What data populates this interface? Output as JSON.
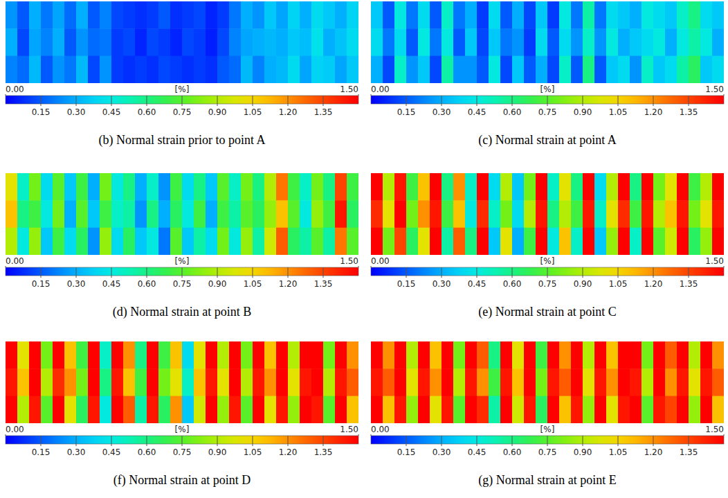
{
  "chart_data": [
    {
      "type": "heatmap",
      "title": "(b) Normal strain prior to point A",
      "cells": [
        [
          0.25,
          0.15,
          0.3,
          0.2,
          0.28,
          0.18,
          0.3,
          0.15,
          0.22,
          0.12,
          0.1,
          0.08,
          0.1,
          0.15,
          0.08,
          0.1,
          0.12,
          0.06,
          0.1,
          0.2,
          0.3,
          0.25,
          0.35,
          0.28,
          0.38,
          0.3,
          0.4,
          0.35,
          0.3,
          0.38
        ],
        [
          0.3,
          0.12,
          0.28,
          0.22,
          0.3,
          0.15,
          0.25,
          0.18,
          0.2,
          0.1,
          0.12,
          0.06,
          0.12,
          0.1,
          0.06,
          0.12,
          0.1,
          0.05,
          0.12,
          0.22,
          0.28,
          0.3,
          0.32,
          0.3,
          0.35,
          0.33,
          0.42,
          0.3,
          0.34,
          0.4
        ],
        [
          0.22,
          0.18,
          0.32,
          0.15,
          0.25,
          0.2,
          0.32,
          0.12,
          0.25,
          0.1,
          0.08,
          0.1,
          0.08,
          0.12,
          0.1,
          0.08,
          0.1,
          0.08,
          0.15,
          0.18,
          0.32,
          0.22,
          0.3,
          0.32,
          0.4,
          0.28,
          0.38,
          0.36,
          0.28,
          0.35
        ]
      ],
      "colorbar_range": [
        0,
        1.5
      ],
      "colorbar_label": "[%]",
      "colorbar_ticks": [
        {
          "value": 0,
          "label": "0.00"
        },
        0.15,
        {
          "value": 0.3,
          "label": "0.30"
        },
        0.45,
        {
          "value": 0.6,
          "label": "0.60"
        },
        0.75,
        {
          "value": 0.9,
          "label": "0.90"
        },
        1.05,
        {
          "value": 1.2,
          "label": "1.20"
        },
        1.35,
        {
          "value": 1.5,
          "label": "1.50"
        }
      ]
    },
    {
      "type": "heatmap",
      "title": "(c) Normal strain at point A",
      "cells": [
        [
          0.35,
          0.15,
          0.45,
          0.2,
          0.4,
          0.15,
          0.5,
          0.2,
          0.3,
          0.1,
          0.4,
          0.15,
          0.3,
          0.12,
          0.35,
          0.1,
          0.45,
          0.2,
          0.55,
          0.2,
          0.4,
          0.35,
          0.3,
          0.45,
          0.4,
          0.35,
          0.5,
          0.6,
          0.4,
          0.35
        ],
        [
          0.4,
          0.2,
          0.4,
          0.15,
          0.45,
          0.2,
          0.45,
          0.15,
          0.35,
          0.12,
          0.35,
          0.2,
          0.25,
          0.1,
          0.4,
          0.15,
          0.4,
          0.25,
          0.5,
          0.25,
          0.45,
          0.3,
          0.35,
          0.4,
          0.45,
          0.3,
          0.45,
          0.55,
          0.45,
          0.3
        ],
        [
          0.3,
          0.12,
          0.5,
          0.25,
          0.35,
          0.12,
          0.55,
          0.25,
          0.25,
          0.15,
          0.45,
          0.12,
          0.35,
          0.15,
          0.3,
          0.12,
          0.5,
          0.15,
          0.6,
          0.15,
          0.35,
          0.4,
          0.25,
          0.5,
          0.35,
          0.4,
          0.55,
          0.65,
          0.35,
          0.4
        ]
      ],
      "colorbar_range": [
        0,
        1.5
      ],
      "colorbar_label": "[%]",
      "colorbar_ticks": [
        {
          "value": 0,
          "label": "0.00"
        },
        0.15,
        {
          "value": 0.3,
          "label": "0.30"
        },
        0.45,
        {
          "value": 0.6,
          "label": "0.60"
        },
        0.75,
        {
          "value": 0.9,
          "label": "0.90"
        },
        1.05,
        {
          "value": 1.2,
          "label": "1.20"
        },
        1.35,
        {
          "value": 1.5,
          "label": "1.50"
        }
      ]
    },
    {
      "type": "heatmap",
      "title": "(d) Normal strain at point B",
      "cells": [
        [
          1.0,
          0.5,
          0.8,
          0.4,
          0.75,
          0.35,
          0.7,
          0.3,
          0.8,
          0.45,
          0.6,
          0.3,
          0.5,
          0.25,
          0.7,
          0.4,
          0.6,
          0.35,
          0.75,
          0.5,
          0.8,
          0.6,
          0.9,
          1.25,
          0.7,
          0.5,
          0.8,
          0.6,
          1.35,
          0.7
        ],
        [
          1.1,
          0.6,
          0.7,
          0.45,
          0.8,
          0.3,
          0.75,
          0.35,
          0.7,
          0.5,
          0.55,
          0.25,
          0.6,
          0.3,
          0.65,
          0.45,
          0.7,
          0.3,
          0.7,
          0.55,
          0.75,
          0.65,
          0.85,
          1.1,
          0.75,
          0.45,
          0.85,
          0.7,
          1.45,
          0.65
        ],
        [
          0.9,
          0.45,
          0.85,
          0.35,
          0.7,
          0.4,
          0.65,
          0.25,
          0.85,
          0.4,
          0.65,
          0.35,
          0.45,
          0.2,
          0.75,
          0.35,
          0.55,
          0.4,
          0.8,
          0.45,
          0.85,
          0.55,
          0.95,
          1.3,
          0.65,
          0.55,
          0.75,
          0.55,
          1.25,
          0.75
        ]
      ],
      "colorbar_range": [
        0,
        1.5
      ],
      "colorbar_label": "[%]",
      "colorbar_ticks": [
        {
          "value": 0,
          "label": "0.00"
        },
        0.15,
        {
          "value": 0.3,
          "label": "0.30"
        },
        0.45,
        {
          "value": 0.6,
          "label": "0.60"
        },
        0.75,
        {
          "value": 0.9,
          "label": "0.90"
        },
        1.05,
        {
          "value": 1.2,
          "label": "1.20"
        },
        1.35,
        {
          "value": 1.5,
          "label": "1.50"
        }
      ]
    },
    {
      "type": "heatmap",
      "title": "(e) Normal strain at point C",
      "cells": [
        [
          1.5,
          0.9,
          1.45,
          0.7,
          1.1,
          1.5,
          0.6,
          1.2,
          0.5,
          1.5,
          0.4,
          0.9,
          0.35,
          0.8,
          1.5,
          0.5,
          1.0,
          0.6,
          1.5,
          0.4,
          0.9,
          1.5,
          0.6,
          1.5,
          0.8,
          1.0,
          1.5,
          0.7,
          0.9,
          1.5
        ],
        [
          1.4,
          1.0,
          1.5,
          0.8,
          1.2,
          1.45,
          0.7,
          1.1,
          0.45,
          1.4,
          0.5,
          0.8,
          0.4,
          0.9,
          1.45,
          0.6,
          0.9,
          0.7,
          1.45,
          0.5,
          1.0,
          1.4,
          0.7,
          1.45,
          0.9,
          1.1,
          1.45,
          0.8,
          1.0,
          1.45
        ],
        [
          1.5,
          0.8,
          1.35,
          0.65,
          1.0,
          1.5,
          0.55,
          1.3,
          0.6,
          1.5,
          0.35,
          1.0,
          0.3,
          0.7,
          1.5,
          0.45,
          1.1,
          0.5,
          1.5,
          0.35,
          0.85,
          1.5,
          0.5,
          1.5,
          0.75,
          0.95,
          1.5,
          0.65,
          0.85,
          1.5
        ]
      ],
      "colorbar_range": [
        0,
        1.5
      ],
      "colorbar_label": "[%]",
      "colorbar_ticks": [
        {
          "value": 0,
          "label": "0.00"
        },
        0.15,
        {
          "value": 0.3,
          "label": "0.30"
        },
        0.45,
        {
          "value": 0.6,
          "label": "0.60"
        },
        0.75,
        {
          "value": 0.9,
          "label": "0.90"
        },
        1.05,
        {
          "value": 1.2,
          "label": "1.20"
        },
        1.35,
        {
          "value": 1.5,
          "label": "1.50"
        }
      ]
    },
    {
      "type": "heatmap",
      "title": "(f) Normal strain at point D",
      "cells": [
        [
          1.5,
          1.0,
          1.5,
          0.8,
          1.5,
          1.1,
          0.7,
          1.5,
          0.5,
          1.5,
          1.2,
          0.6,
          1.5,
          0.7,
          1.1,
          0.4,
          1.0,
          1.5,
          0.9,
          1.5,
          0.8,
          1.5,
          1.1,
          1.5,
          0.9,
          1.5,
          1.5,
          0.8,
          1.5,
          1.2
        ],
        [
          1.45,
          1.1,
          1.5,
          0.9,
          1.4,
          1.2,
          0.8,
          1.5,
          0.6,
          1.45,
          1.1,
          0.7,
          1.5,
          0.8,
          1.0,
          0.5,
          1.1,
          1.45,
          1.0,
          1.5,
          0.9,
          1.45,
          1.2,
          1.5,
          1.0,
          1.45,
          1.5,
          0.9,
          1.45,
          1.3
        ],
        [
          1.5,
          0.9,
          1.45,
          0.75,
          1.5,
          1.0,
          0.65,
          1.45,
          0.45,
          1.5,
          1.3,
          0.55,
          1.45,
          0.65,
          1.2,
          0.35,
          0.95,
          1.5,
          0.85,
          1.45,
          0.75,
          1.5,
          1.0,
          1.45,
          0.85,
          1.5,
          1.45,
          0.75,
          1.5,
          1.1
        ]
      ],
      "colorbar_range": [
        0,
        1.5
      ],
      "colorbar_label": "[%]",
      "colorbar_ticks": [
        {
          "value": 0,
          "label": "0.00"
        },
        0.15,
        {
          "value": 0.3,
          "label": "0.30"
        },
        0.45,
        {
          "value": 0.6,
          "label": "0.60"
        },
        0.75,
        {
          "value": 0.9,
          "label": "0.90"
        },
        1.05,
        {
          "value": 1.2,
          "label": "1.20"
        },
        1.35,
        {
          "value": 1.5,
          "label": "1.50"
        }
      ]
    },
    {
      "type": "heatmap",
      "title": "(g) Normal strain at point E",
      "cells": [
        [
          1.5,
          1.2,
          1.5,
          0.9,
          1.5,
          1.1,
          1.5,
          0.8,
          1.5,
          1.3,
          0.6,
          1.5,
          1.0,
          1.5,
          0.7,
          1.5,
          1.2,
          1.5,
          0.9,
          1.5,
          1.1,
          1.5,
          1.5,
          0.8,
          1.5,
          1.3,
          1.5,
          0.9,
          1.5,
          1.2
        ],
        [
          1.45,
          1.3,
          1.5,
          1.0,
          1.45,
          1.2,
          1.5,
          0.9,
          1.45,
          1.2,
          0.7,
          1.45,
          1.1,
          1.5,
          0.8,
          1.45,
          1.3,
          1.5,
          1.0,
          1.45,
          1.2,
          1.5,
          1.45,
          0.9,
          1.5,
          1.2,
          1.45,
          1.0,
          1.45,
          1.3
        ],
        [
          1.5,
          1.1,
          1.45,
          0.85,
          1.5,
          1.0,
          1.45,
          0.75,
          1.5,
          1.4,
          0.55,
          1.5,
          0.95,
          1.45,
          0.65,
          1.5,
          1.1,
          1.45,
          0.85,
          1.5,
          1.0,
          1.45,
          1.5,
          0.75,
          1.45,
          1.35,
          1.5,
          0.85,
          1.5,
          1.1
        ]
      ],
      "colorbar_range": [
        0,
        1.5
      ],
      "colorbar_label": "[%]",
      "colorbar_ticks": [
        {
          "value": 0,
          "label": "0.00"
        },
        0.15,
        {
          "value": 0.3,
          "label": "0.30"
        },
        0.45,
        {
          "value": 0.6,
          "label": "0.60"
        },
        0.75,
        {
          "value": 0.9,
          "label": "0.90"
        },
        1.05,
        {
          "value": 1.2,
          "label": "1.20"
        },
        1.35,
        {
          "value": 1.5,
          "label": "1.50"
        }
      ]
    }
  ]
}
